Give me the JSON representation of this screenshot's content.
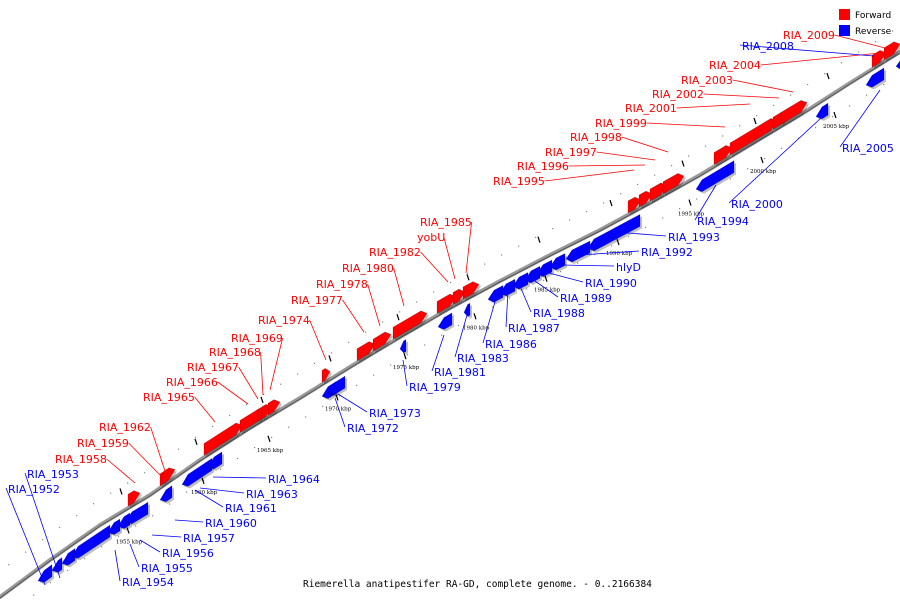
{
  "caption": "Riemerella anatipestifer RA-GD, complete genome. - 0..2166384",
  "legend": [
    {
      "label": "Forward",
      "color": "#ff0000"
    },
    {
      "label": "Reverse",
      "color": "#0000ff"
    }
  ],
  "colors": {
    "forward": "#ff0000",
    "reverse": "#0000ff",
    "backbone": "#888888"
  },
  "kbp_unit": "kbp",
  "kbp_ticks": [
    1955,
    1960,
    1965,
    1970,
    1975,
    1980,
    1985,
    1990,
    1995,
    2000,
    2005
  ],
  "forward_genes": [
    "RIA_1958",
    "RIA_1959",
    "RIA_1962",
    "RIA_1965",
    "RIA_1966",
    "RIA_1967",
    "RIA_1968",
    "RIA_1969",
    "RIA_1974",
    "RIA_1977",
    "RIA_1978",
    "RIA_1980",
    "RIA_1982",
    "yobU",
    "RIA_1985",
    "RIA_1995",
    "RIA_1996",
    "RIA_1997",
    "RIA_1998",
    "RIA_1999",
    "RIA_2001",
    "RIA_2002",
    "RIA_2003",
    "RIA_2004",
    "RIA_2009"
  ],
  "reverse_genes": [
    "RIA_1952",
    "RIA_1953",
    "RIA_1954",
    "RIA_1955",
    "RIA_1956",
    "RIA_1957",
    "RIA_1960",
    "RIA_1961",
    "RIA_1963",
    "RIA_1964",
    "RIA_1972",
    "RIA_1973",
    "RIA_1979",
    "RIA_1981",
    "RIA_1983",
    "RIA_1986",
    "RIA_1987",
    "RIA_1988",
    "RIA_1989",
    "RIA_1990",
    "hlyD",
    "RIA_1992",
    "RIA_1993",
    "RIA_1994",
    "RIA_2000",
    "RIA_2005",
    "RIA_2008"
  ]
}
